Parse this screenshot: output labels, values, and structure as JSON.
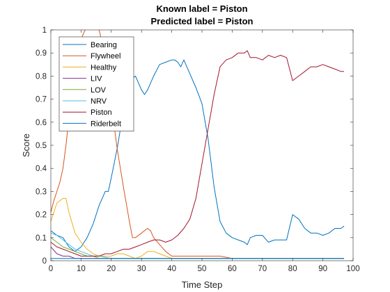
{
  "chart_data": {
    "type": "line",
    "title": "Known label = Piston",
    "subtitle": "Predicted label = Piston",
    "xlabel": "Time Step",
    "ylabel": "Score",
    "xlim": [
      0,
      100
    ],
    "ylim": [
      0,
      1
    ],
    "xticks": [
      "0",
      "10",
      "20",
      "30",
      "40",
      "50",
      "60",
      "70",
      "80",
      "90",
      "100"
    ],
    "yticks": [
      "0",
      "0.1",
      "0.2",
      "0.3",
      "0.4",
      "0.5",
      "0.6",
      "0.7",
      "0.8",
      "0.9",
      "1"
    ],
    "grid": false,
    "legend_position": "top-left",
    "series": [
      {
        "name": "Bearing",
        "color": "#0072BD",
        "x": [
          0,
          2,
          4,
          6,
          8,
          10,
          12,
          14,
          16,
          18,
          19,
          20,
          22,
          24,
          25,
          26,
          28,
          30,
          31,
          32,
          34,
          36,
          38,
          40,
          41,
          42,
          43,
          44,
          46,
          48,
          50,
          52,
          54,
          56,
          58,
          60,
          62,
          64,
          65,
          66,
          68,
          70,
          72,
          74,
          76,
          78,
          80,
          82,
          84,
          86,
          88,
          90,
          92,
          94,
          96,
          97
        ],
        "values": [
          0.13,
          0.11,
          0.1,
          0.06,
          0.04,
          0.06,
          0.1,
          0.16,
          0.24,
          0.3,
          0.3,
          0.36,
          0.49,
          0.65,
          0.74,
          0.78,
          0.8,
          0.74,
          0.72,
          0.74,
          0.8,
          0.85,
          0.86,
          0.87,
          0.87,
          0.86,
          0.84,
          0.87,
          0.81,
          0.75,
          0.68,
          0.53,
          0.32,
          0.17,
          0.12,
          0.1,
          0.09,
          0.08,
          0.07,
          0.1,
          0.11,
          0.11,
          0.08,
          0.09,
          0.09,
          0.09,
          0.2,
          0.18,
          0.14,
          0.12,
          0.12,
          0.11,
          0.12,
          0.14,
          0.14,
          0.15
        ]
      },
      {
        "name": "Flywheel",
        "color": "#D95319",
        "x": [
          0,
          1,
          2,
          3,
          4,
          5,
          6,
          7,
          8,
          9,
          10,
          12,
          14,
          16,
          18,
          19,
          20,
          21,
          22,
          24,
          26,
          27,
          28,
          30,
          32,
          33,
          34,
          36,
          38,
          40,
          44,
          48,
          52,
          56,
          60,
          70,
          80,
          90,
          97
        ],
        "values": [
          0.21,
          0.26,
          0.3,
          0.34,
          0.4,
          0.5,
          0.62,
          0.76,
          0.85,
          0.92,
          0.96,
          1.02,
          1.05,
          1.0,
          0.88,
          0.76,
          0.68,
          0.58,
          0.48,
          0.32,
          0.17,
          0.1,
          0.1,
          0.12,
          0.14,
          0.13,
          0.1,
          0.07,
          0.04,
          0.02,
          0.02,
          0.02,
          0.02,
          0.02,
          0.01,
          0.01,
          0.01,
          0.01,
          0.01
        ]
      },
      {
        "name": "Healthy",
        "color": "#EDB120",
        "x": [
          0,
          2,
          4,
          5,
          6,
          8,
          10,
          12,
          14,
          16,
          18,
          20,
          22,
          24,
          26,
          28,
          30,
          32,
          34,
          36,
          38,
          40,
          44,
          50,
          60,
          70,
          80,
          90,
          97
        ],
        "values": [
          0.17,
          0.25,
          0.27,
          0.27,
          0.21,
          0.12,
          0.08,
          0.05,
          0.03,
          0.02,
          0.02,
          0.02,
          0.03,
          0.03,
          0.02,
          0.01,
          0.02,
          0.04,
          0.04,
          0.03,
          0.02,
          0.01,
          0.01,
          0.01,
          0.01,
          0.01,
          0.01,
          0.01,
          0.01
        ]
      },
      {
        "name": "LIV",
        "color": "#7E2F8E",
        "x": [
          0,
          2,
          4,
          6,
          8,
          10,
          12,
          14,
          20,
          30,
          40,
          50,
          60,
          70,
          80,
          90,
          97
        ],
        "values": [
          0.06,
          0.03,
          0.02,
          0.02,
          0.01,
          0.01,
          0.01,
          0.01,
          0.01,
          0.01,
          0.01,
          0.01,
          0.01,
          0.01,
          0.01,
          0.01,
          0.01
        ]
      },
      {
        "name": "LOV",
        "color": "#77AC30",
        "x": [
          0,
          2,
          4,
          6,
          8,
          10,
          12,
          14,
          16,
          20,
          30,
          40,
          50,
          60,
          70,
          80,
          90,
          97
        ],
        "values": [
          0.1,
          0.08,
          0.06,
          0.05,
          0.04,
          0.03,
          0.02,
          0.02,
          0.01,
          0.01,
          0.01,
          0.01,
          0.01,
          0.01,
          0.01,
          0.01,
          0.01,
          0.01
        ]
      },
      {
        "name": "NRV",
        "color": "#4DBEEE",
        "x": [
          0,
          2,
          4,
          6,
          8,
          10,
          12,
          14,
          16,
          20,
          30,
          40,
          50,
          60,
          70,
          80,
          90,
          97
        ],
        "values": [
          0.12,
          0.11,
          0.09,
          0.07,
          0.05,
          0.04,
          0.03,
          0.02,
          0.02,
          0.01,
          0.01,
          0.01,
          0.01,
          0.01,
          0.01,
          0.01,
          0.01,
          0.01
        ]
      },
      {
        "name": "Piston",
        "color": "#A2142F",
        "x": [
          0,
          2,
          4,
          6,
          8,
          10,
          12,
          14,
          16,
          18,
          20,
          22,
          24,
          26,
          28,
          30,
          32,
          34,
          36,
          38,
          40,
          42,
          44,
          46,
          48,
          50,
          52,
          54,
          56,
          58,
          60,
          62,
          64,
          65,
          66,
          68,
          70,
          72,
          74,
          76,
          78,
          80,
          82,
          84,
          86,
          88,
          90,
          92,
          94,
          96,
          97
        ],
        "values": [
          0.08,
          0.06,
          0.05,
          0.04,
          0.03,
          0.02,
          0.02,
          0.02,
          0.02,
          0.03,
          0.03,
          0.04,
          0.05,
          0.05,
          0.06,
          0.07,
          0.08,
          0.09,
          0.09,
          0.08,
          0.09,
          0.11,
          0.14,
          0.18,
          0.27,
          0.42,
          0.57,
          0.72,
          0.84,
          0.87,
          0.88,
          0.9,
          0.9,
          0.91,
          0.88,
          0.88,
          0.87,
          0.89,
          0.88,
          0.89,
          0.88,
          0.78,
          0.8,
          0.82,
          0.84,
          0.84,
          0.85,
          0.84,
          0.83,
          0.82,
          0.82
        ]
      },
      {
        "name": "Riderbelt",
        "color": "#0072BD",
        "x": [
          0,
          5,
          10,
          20,
          30,
          40,
          50,
          60,
          70,
          80,
          90,
          97
        ],
        "values": [
          0.01,
          0.01,
          0.01,
          0.01,
          0.01,
          0.01,
          0.01,
          0.01,
          0.01,
          0.01,
          0.01,
          0.01
        ]
      }
    ]
  }
}
